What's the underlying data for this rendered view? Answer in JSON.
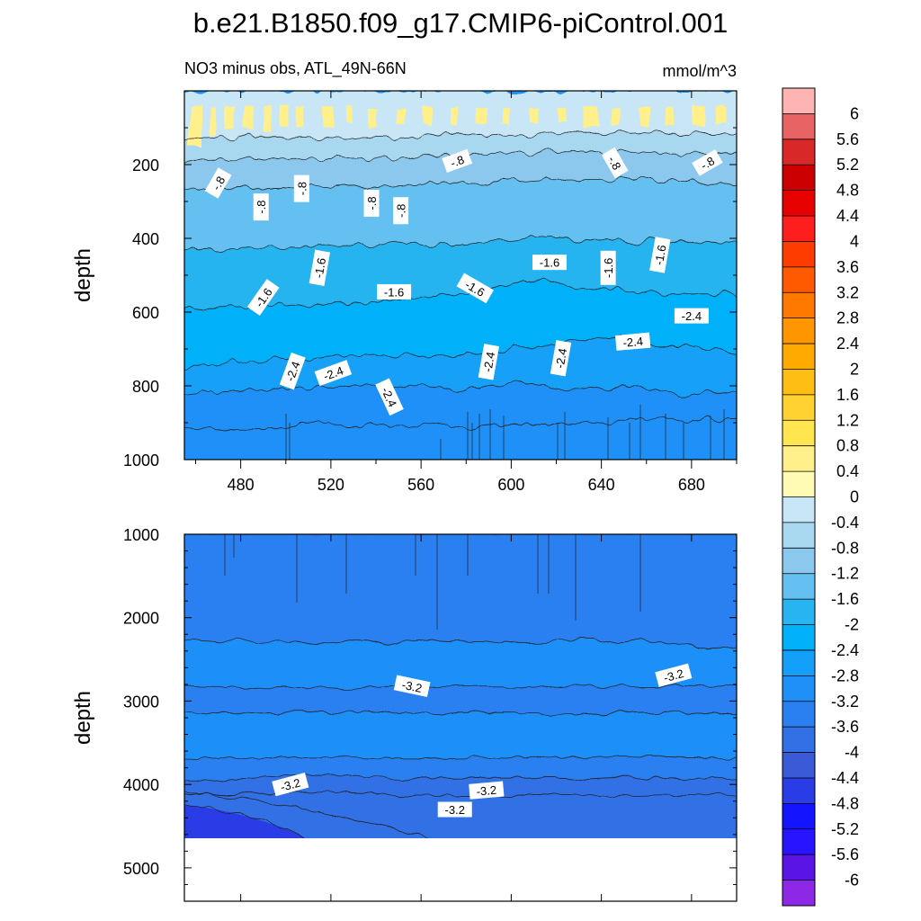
{
  "chart_data": {
    "type": "contour",
    "title": "b.e21.B1850.f09_g17.CMIP6-piControl.001",
    "colorbar": {
      "levels": [
        "6",
        "5.6",
        "5.2",
        "4.8",
        "4.4",
        "4",
        "3.6",
        "3.2",
        "2.8",
        "2.4",
        "2",
        "1.6",
        "1.2",
        "0.8",
        "0.4",
        "0",
        "-0.4",
        "-0.8",
        "-1.2",
        "-1.6",
        "-2",
        "-2.4",
        "-2.8",
        "-3.2",
        "-3.6",
        "-4",
        "-4.4",
        "-4.8",
        "-5.2",
        "-5.6",
        "-6"
      ],
      "colors_top_to_bottom": [
        "#ffb4b4",
        "#e86464",
        "#d82828",
        "#cc0000",
        "#e60000",
        "#ff1e1e",
        "#ff3c00",
        "#ff5a00",
        "#ff7800",
        "#ff9600",
        "#ffaa00",
        "#ffbe14",
        "#ffd232",
        "#ffe650",
        "#fff08c",
        "#fffab4",
        "#c8e6f5",
        "#a8d8f0",
        "#8cc8ee",
        "#64c0f0",
        "#28b4f0",
        "#00b0f8",
        "#14a0f8",
        "#1e90f8",
        "#2a80f0",
        "#3270e6",
        "#3a5ad8",
        "#2a3ce6",
        "#1414ff",
        "#2814ff",
        "#5a14e6",
        "#8c28e6"
      ]
    },
    "panels": [
      {
        "subtitle_left": "NO3 minus obs, ATL_49N-66N",
        "subtitle_right": "mmol/m^3",
        "ylabel": "depth",
        "ylim": [
          0,
          1000
        ],
        "yticks": [
          "200",
          "400",
          "600",
          "800",
          "1000"
        ],
        "xlim": [
          455,
          700
        ],
        "xticks": [
          "480",
          "520",
          "560",
          "600",
          "640",
          "680"
        ],
        "contour_labels": [
          {
            "text": "-.8",
            "x": 470,
            "y": 250,
            "rot": -60
          },
          {
            "text": "-.8",
            "x": 489,
            "y": 315,
            "rot": -90
          },
          {
            "text": "-.8",
            "x": 507,
            "y": 265,
            "rot": -90
          },
          {
            "text": "-.8",
            "x": 538,
            "y": 305,
            "rot": -90
          },
          {
            "text": "-.8",
            "x": 551,
            "y": 325,
            "rot": -90
          },
          {
            "text": "-.8",
            "x": 576,
            "y": 190,
            "rot": -20
          },
          {
            "text": "-.8",
            "x": 646,
            "y": 195,
            "rot": 60
          },
          {
            "text": "-.8",
            "x": 687,
            "y": 195,
            "rot": -30
          },
          {
            "text": "-1.6",
            "x": 490,
            "y": 560,
            "rot": -55
          },
          {
            "text": "-1.6",
            "x": 515,
            "y": 480,
            "rot": -80
          },
          {
            "text": "-1.6",
            "x": 548,
            "y": 545,
            "rot": 0
          },
          {
            "text": "-1.6",
            "x": 584,
            "y": 535,
            "rot": 30
          },
          {
            "text": "-1.6",
            "x": 617,
            "y": 465,
            "rot": 0
          },
          {
            "text": "-1.6",
            "x": 643,
            "y": 480,
            "rot": -90
          },
          {
            "text": "-1.6",
            "x": 666,
            "y": 445,
            "rot": -80
          },
          {
            "text": "-2.4",
            "x": 503,
            "y": 760,
            "rot": -70
          },
          {
            "text": "-2.4",
            "x": 521,
            "y": 765,
            "rot": -20
          },
          {
            "text": "-2.4",
            "x": 546,
            "y": 830,
            "rot": 65
          },
          {
            "text": "-2.4",
            "x": 590,
            "y": 735,
            "rot": -80
          },
          {
            "text": "-2.4",
            "x": 622,
            "y": 725,
            "rot": -80
          },
          {
            "text": "-2.4",
            "x": 654,
            "y": 680,
            "rot": -5
          },
          {
            "text": "-2.4",
            "x": 680,
            "y": 610,
            "rot": 0
          }
        ]
      },
      {
        "subtitle_left": "",
        "subtitle_right": "",
        "ylabel": "depth",
        "ylim": [
          1000,
          5400
        ],
        "yticks": [
          "1000",
          "2000",
          "3000",
          "4000",
          "5000"
        ],
        "xlim": [
          455,
          700
        ],
        "no_data_below_depth": 4630,
        "contour_labels": [
          {
            "text": "-3.2",
            "x": 556,
            "y": 2820,
            "rot": 12
          },
          {
            "text": "-3.2",
            "x": 672,
            "y": 2690,
            "rot": -15
          },
          {
            "text": "-3.2",
            "x": 502,
            "y": 4000,
            "rot": -15
          },
          {
            "text": "-3.2",
            "x": 589,
            "y": 4070,
            "rot": -5
          },
          {
            "text": "-3.2",
            "x": 575,
            "y": 4300,
            "rot": 0
          }
        ]
      }
    ]
  }
}
